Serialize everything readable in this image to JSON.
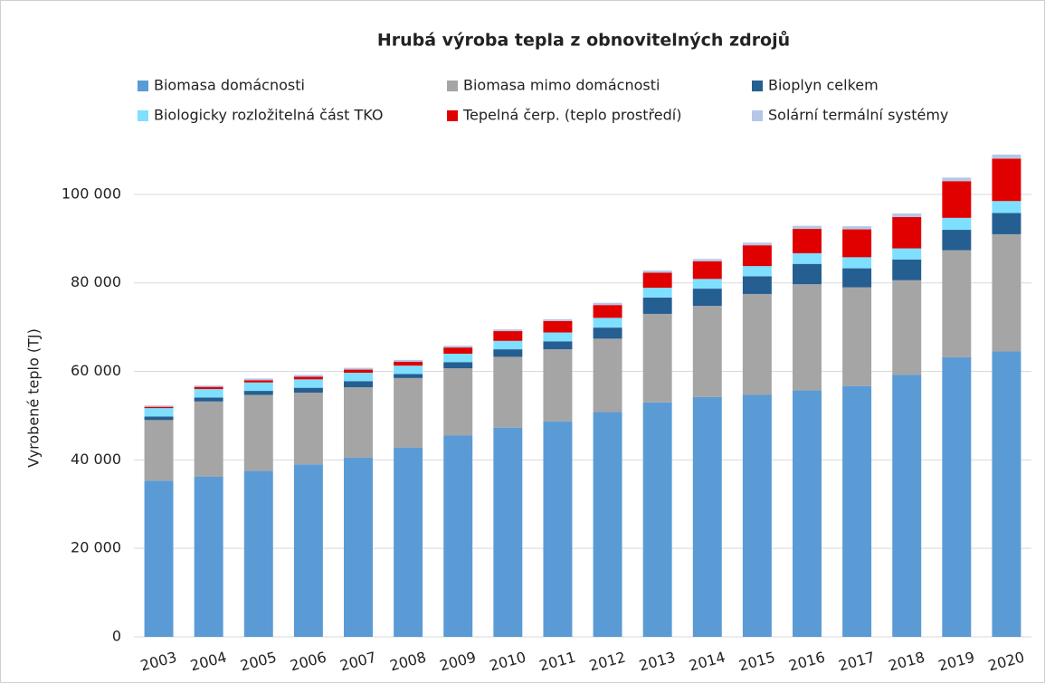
{
  "chart_data": {
    "type": "stacked_bar",
    "title": "Hrubá výroba tepla z obnovitelných zdrojů",
    "y_label": "Vyrobené teplo (TJ)",
    "categories": [
      "2003",
      "2004",
      "2005",
      "2006",
      "2007",
      "2008",
      "2009",
      "2010",
      "2011",
      "2012",
      "2013",
      "2014",
      "2015",
      "2016",
      "2017",
      "2018",
      "2019",
      "2020"
    ],
    "series": [
      {
        "name": "Biomasa domácnosti",
        "color": "#5b9bd5",
        "values": [
          35300,
          36200,
          37500,
          39000,
          40500,
          42800,
          45500,
          47300,
          48700,
          50800,
          53000,
          54200,
          54700,
          55700,
          56700,
          59200,
          63200,
          64500
        ]
      },
      {
        "name": "Biomasa mimo domácnosti",
        "color": "#a5a5a5",
        "values": [
          13700,
          17000,
          17200,
          16200,
          15900,
          15700,
          15200,
          16000,
          16300,
          16600,
          20000,
          20600,
          22800,
          24000,
          22300,
          21400,
          24200,
          26500
        ]
      },
      {
        "name": "Bioplyn celkem",
        "color": "#255e91",
        "values": [
          800,
          900,
          900,
          1100,
          1400,
          900,
          1400,
          1700,
          1800,
          2500,
          3700,
          3900,
          4000,
          4600,
          4300,
          4700,
          4600,
          4800
        ]
      },
      {
        "name": "Biologicky rozložitelná část TKO",
        "color": "#7fdfff",
        "values": [
          1900,
          1900,
          1900,
          1900,
          1900,
          1900,
          1900,
          1900,
          2000,
          2200,
          2200,
          2200,
          2300,
          2400,
          2500,
          2500,
          2700,
          2700
        ]
      },
      {
        "name": "Tepelná čerp. (teplo prostředí)",
        "color": "#e00000",
        "values": [
          300,
          500,
          500,
          600,
          700,
          900,
          1400,
          2200,
          2600,
          2900,
          3400,
          4000,
          4700,
          5500,
          6300,
          7100,
          8300,
          9600
        ]
      },
      {
        "name": "Solární termální systémy",
        "color": "#b4c7e7",
        "values": [
          300,
          300,
          400,
          400,
          400,
          400,
          400,
          400,
          400,
          500,
          500,
          500,
          600,
          700,
          700,
          800,
          800,
          900
        ]
      }
    ],
    "ylim": [
      0,
      110000
    ],
    "yticks": [
      0,
      {
        "value": 20000,
        "label": "20 000"
      },
      {
        "value": 40000,
        "label": "40 000"
      },
      {
        "value": 60000,
        "label": "60 000"
      },
      {
        "value": 80000,
        "label": "80 000"
      },
      {
        "value": 100000,
        "label": "100 000"
      }
    ],
    "grid": true
  }
}
